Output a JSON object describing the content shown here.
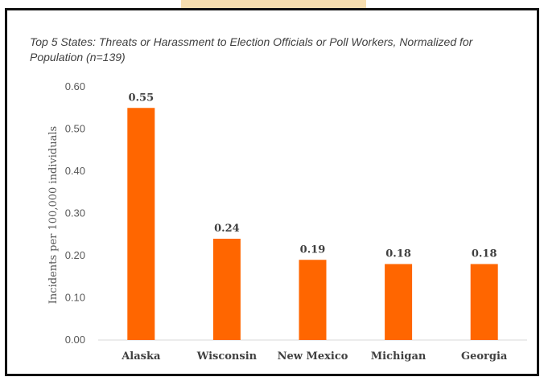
{
  "chart_data": {
    "type": "bar",
    "title": "Top 5 States: Threats or Harassment to Election Officials or Poll Workers, Normalized for Population (n=139)",
    "xlabel": "",
    "ylabel": "Incidents per 100,000 individuals",
    "categories": [
      "Alaska",
      "Wisconsin",
      "New Mexico",
      "Michigan",
      "Georgia"
    ],
    "values": [
      0.55,
      0.24,
      0.19,
      0.18,
      0.18
    ],
    "data_labels": [
      "0.55",
      "0.24",
      "0.19",
      "0.18",
      "0.18"
    ],
    "ylim": [
      0,
      0.6
    ],
    "yticks": [
      "0.00",
      "0.10",
      "0.20",
      "0.30",
      "0.40",
      "0.50",
      "0.60"
    ],
    "grid": false,
    "legend": "none",
    "bar_color": "#ff6600"
  }
}
